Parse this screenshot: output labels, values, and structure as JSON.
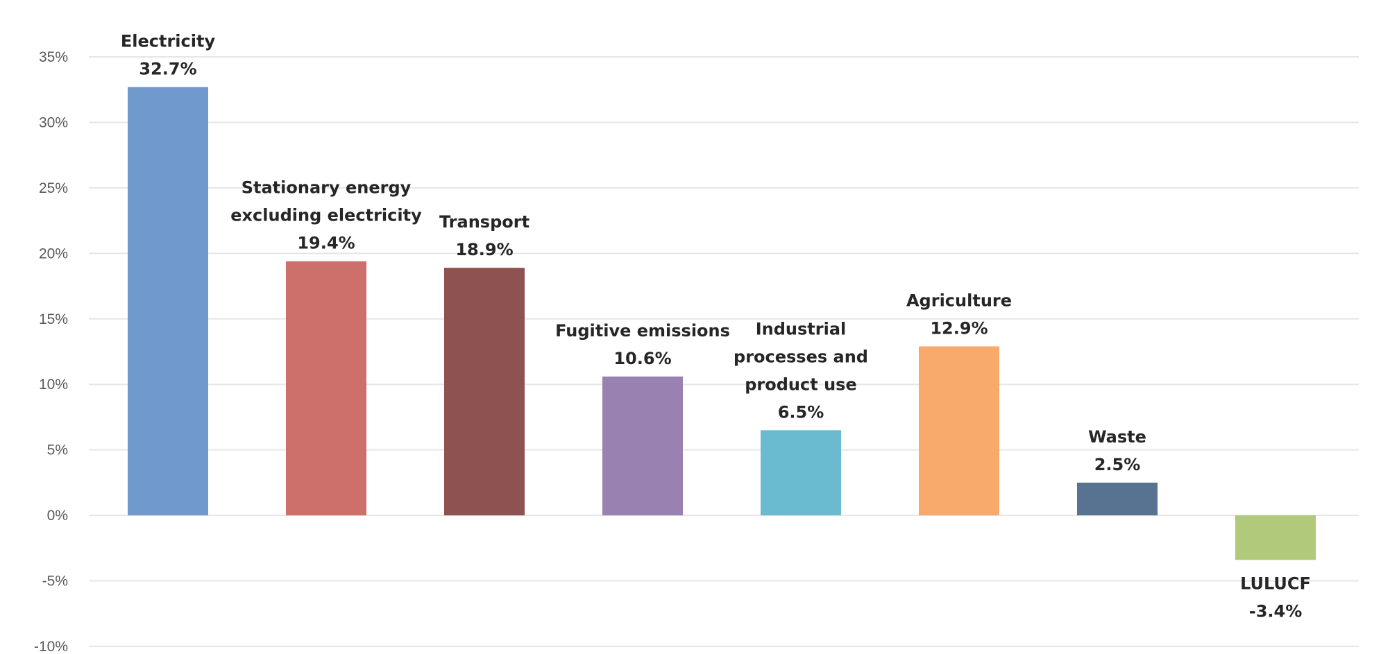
{
  "chart_data": {
    "type": "bar",
    "title": "",
    "xlabel": "",
    "ylabel": "",
    "ylim": [
      -10,
      35
    ],
    "y_ticks": [
      35,
      30,
      25,
      20,
      15,
      10,
      5,
      0,
      -5,
      -10
    ],
    "y_tick_labels": [
      "35%",
      "30%",
      "25%",
      "20%",
      "15%",
      "10%",
      "5%",
      "0%",
      "-5%",
      "-10%"
    ],
    "grid": true,
    "legend": "none",
    "categories": [
      "Electricity",
      "Stationary energy excluding electricity",
      "Transport",
      "Fugitive emissions",
      "Industrial processes and product use",
      "Agriculture",
      "Waste",
      "LULUCF"
    ],
    "values": [
      32.7,
      19.4,
      18.9,
      10.6,
      6.5,
      12.9,
      2.5,
      -3.4
    ],
    "bar_labels": [
      {
        "lines": [
          "Electricity",
          "32.7%"
        ]
      },
      {
        "lines": [
          "Stationary energy",
          "excluding electricity",
          "19.4%"
        ]
      },
      {
        "lines": [
          "Transport",
          "18.9%"
        ]
      },
      {
        "lines": [
          "Fugitive emissions",
          "10.6%"
        ]
      },
      {
        "lines": [
          "Industrial",
          "processes and",
          "product use",
          "6.5%"
        ]
      },
      {
        "lines": [
          "Agriculture",
          "12.9%"
        ]
      },
      {
        "lines": [
          "Waste",
          "2.5%"
        ]
      },
      {
        "lines": [
          "LULUCF",
          "-3.4%"
        ]
      }
    ],
    "colors": [
      "#7099cd",
      "#cd706c",
      "#8e5351",
      "#9982b1",
      "#6bbbd0",
      "#f8aa6d",
      "#577391",
      "#b0c97b"
    ]
  }
}
